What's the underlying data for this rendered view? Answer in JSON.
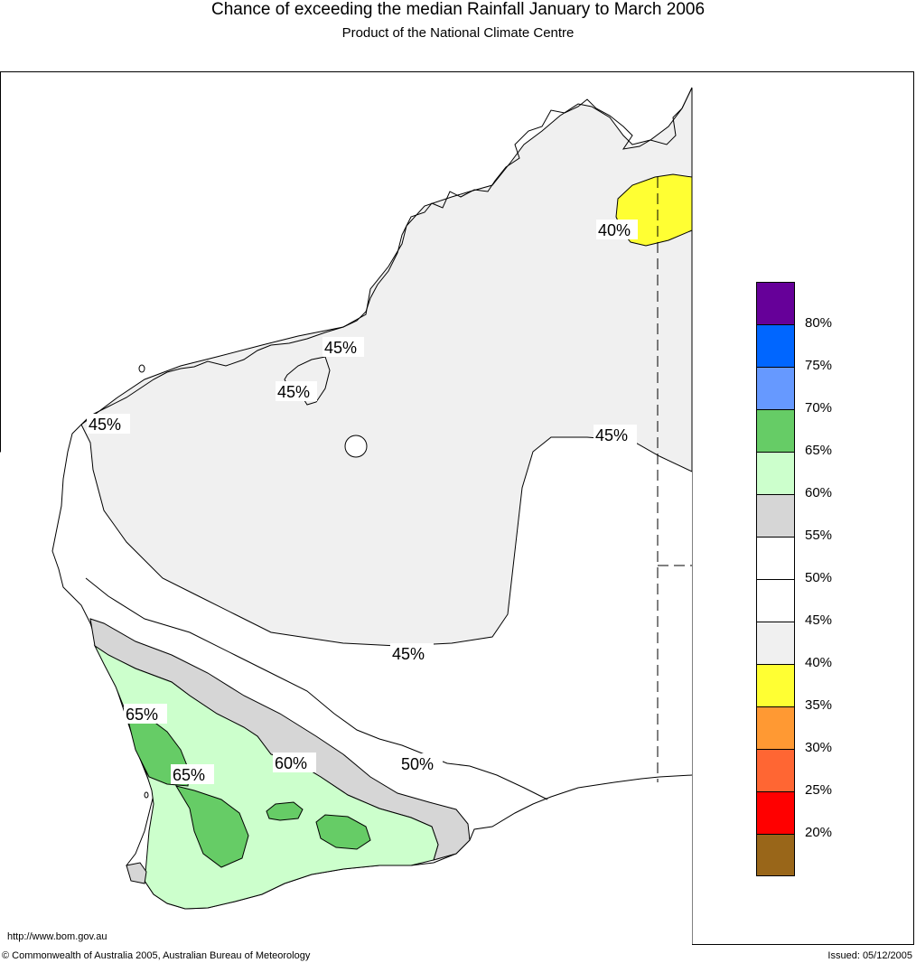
{
  "header": {
    "title": "Chance of exceeding the median Rainfall January to March 2006",
    "subtitle": "Product of the National Climate Centre"
  },
  "footer": {
    "url": "http://www.bom.gov.au",
    "copyright": "© Commonwealth of Australia 2005, Australian Bureau of Meteorology",
    "issued": "Issued: 05/12/2005"
  },
  "map": {
    "region": "Western Australia",
    "contour_labels": [
      "40%",
      "45%",
      "45%",
      "45%",
      "45%",
      "45%",
      "50%",
      "60%",
      "65%",
      "65%"
    ]
  },
  "legend": {
    "colors": [
      "#660099",
      "#0066ff",
      "#6699ff",
      "#66cc66",
      "#ccffcc",
      "#d6d6d6",
      "#ffffff",
      "#ffffff",
      "#f0f0f0",
      "#ffff33",
      "#ff9933",
      "#ff6633",
      "#ff0000",
      "#996619"
    ],
    "labels": [
      "80%",
      "75%",
      "70%",
      "65%",
      "60%",
      "55%",
      "50%",
      "45%",
      "40%",
      "35%",
      "30%",
      "25%",
      "20%"
    ]
  }
}
